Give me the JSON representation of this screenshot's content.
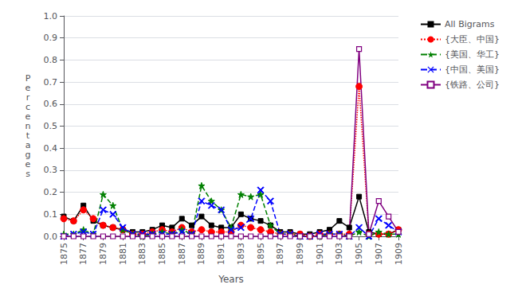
{
  "chart_data": {
    "type": "line",
    "x_label": "Years",
    "y_label": "Percentages",
    "x": [
      1875,
      1876,
      1877,
      1878,
      1879,
      1880,
      1881,
      1882,
      1883,
      1884,
      1885,
      1886,
      1887,
      1888,
      1889,
      1890,
      1891,
      1892,
      1893,
      1894,
      1895,
      1896,
      1897,
      1898,
      1899,
      1900,
      1901,
      1902,
      1903,
      1904,
      1905,
      1906,
      1907,
      1908,
      1909
    ],
    "series": [
      {
        "name": "All Bigrams",
        "color": "#000000",
        "marker": "square",
        "line_style": "solid",
        "values": [
          0.09,
          0.07,
          0.14,
          0.07,
          0.05,
          0.04,
          0.03,
          0.02,
          0.02,
          0.03,
          0.05,
          0.04,
          0.08,
          0.05,
          0.09,
          0.05,
          0.04,
          0.04,
          0.1,
          0.08,
          0.07,
          0.05,
          0.02,
          0.02,
          0.01,
          0.01,
          0.02,
          0.03,
          0.07,
          0.04,
          0.18,
          0.02,
          0.01,
          0.01,
          0.03
        ]
      },
      {
        "name": "{大臣、中国}",
        "color": "#ff0000",
        "marker": "circle",
        "line_style": "dotted",
        "values": [
          0.08,
          0.07,
          0.12,
          0.08,
          0.05,
          0.04,
          0.03,
          0.01,
          0.01,
          0.02,
          0.03,
          0.02,
          0.04,
          0.02,
          0.03,
          0.02,
          0.02,
          0.02,
          0.05,
          0.04,
          0.03,
          0.02,
          0.01,
          0.01,
          0.01,
          0.0,
          0.01,
          0.01,
          0.01,
          0.01,
          0.68,
          0.01,
          0.01,
          0.01,
          0.03
        ]
      },
      {
        "name": "{美国、华工}",
        "color": "#008000",
        "marker": "star",
        "line_style": "dashed",
        "values": [
          0.01,
          0.01,
          0.03,
          0.01,
          0.19,
          0.14,
          0.03,
          0.01,
          0.0,
          0.01,
          0.02,
          0.01,
          0.03,
          0.01,
          0.23,
          0.16,
          0.12,
          0.04,
          0.19,
          0.18,
          0.19,
          0.05,
          0.01,
          0.01,
          0.0,
          0.0,
          0.0,
          0.01,
          0.01,
          0.0,
          0.02,
          0.0,
          0.02,
          0.01,
          0.01
        ]
      },
      {
        "name": "{中国、美国}",
        "color": "#0000ff",
        "marker": "x",
        "line_style": "dashed",
        "values": [
          0.0,
          0.01,
          0.02,
          0.01,
          0.12,
          0.1,
          0.04,
          0.01,
          0.01,
          0.01,
          0.01,
          0.01,
          0.02,
          0.01,
          0.16,
          0.14,
          0.12,
          0.03,
          0.04,
          0.08,
          0.21,
          0.16,
          0.01,
          0.01,
          0.0,
          0.0,
          0.01,
          0.01,
          0.01,
          0.0,
          0.04,
          0.0,
          0.08,
          0.05,
          0.02
        ]
      },
      {
        "name": "{铁路、公司}",
        "color": "#800080",
        "marker": "open square",
        "line_style": "solid",
        "values": [
          0.0,
          0.0,
          0.0,
          0.0,
          0.0,
          0.0,
          0.0,
          0.0,
          0.0,
          0.0,
          0.0,
          0.0,
          0.0,
          0.0,
          0.0,
          0.0,
          0.0,
          0.0,
          0.0,
          0.0,
          0.0,
          0.0,
          0.0,
          0.0,
          0.0,
          0.0,
          0.0,
          0.0,
          0.0,
          0.0,
          0.85,
          0.01,
          0.16,
          0.09,
          0.02
        ]
      }
    ],
    "xlim": [
      1875,
      1909
    ],
    "xticks": [
      1875,
      1877,
      1879,
      1881,
      1883,
      1885,
      1887,
      1889,
      1891,
      1893,
      1895,
      1897,
      1899,
      1901,
      1903,
      1905,
      1907,
      1909
    ],
    "ylim": [
      0,
      1
    ],
    "yticks": [
      {
        "value": 0,
        "label": "0.0"
      },
      0.1,
      0.2,
      0.3,
      0.4,
      0.5,
      0.6,
      0.7,
      0.8,
      0.9,
      {
        "value": 1,
        "label": "1.0"
      }
    ],
    "grid": true,
    "legend": "upper right"
  }
}
